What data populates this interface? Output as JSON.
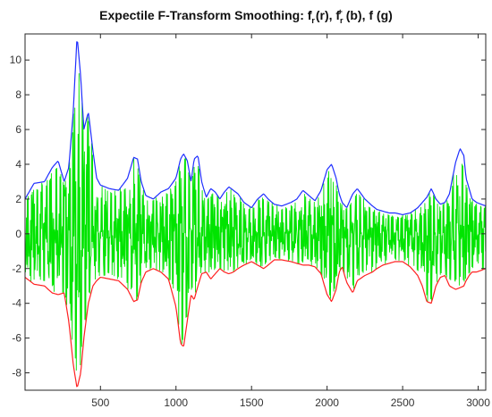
{
  "chart_data": {
    "type": "line",
    "title_parts": {
      "t1": "Expectile F-Transform Smoothing: f",
      "s1": "r",
      "p1": "-",
      "t2": " (r), f",
      "s2": "r",
      "p2": "+",
      "t3": " (b), f (g)"
    },
    "xlabel": "",
    "ylabel": "",
    "xlim": [
      1,
      3050
    ],
    "ylim": [
      -9,
      11.5
    ],
    "xticks": [
      500,
      1000,
      1500,
      2000,
      2500,
      3000
    ],
    "yticks": [
      -8,
      -6,
      -4,
      -2,
      0,
      2,
      4,
      6,
      8,
      10
    ],
    "grid": false,
    "series": [
      {
        "id": "upper",
        "color": "#1f2fff",
        "x": [
          1,
          60,
          130,
          180,
          220,
          260,
          290,
          320,
          345,
          370,
          390,
          420,
          450,
          475,
          500,
          560,
          620,
          680,
          720,
          745,
          770,
          800,
          850,
          900,
          950,
          1000,
          1030,
          1050,
          1075,
          1100,
          1120,
          1145,
          1170,
          1200,
          1230,
          1260,
          1290,
          1320,
          1350,
          1380,
          1410,
          1450,
          1500,
          1540,
          1580,
          1610,
          1650,
          1700,
          1760,
          1800,
          1840,
          1880,
          1920,
          1960,
          2000,
          2030,
          2060,
          2080,
          2100,
          2130,
          2170,
          2200,
          2250,
          2300,
          2330,
          2370,
          2410,
          2450,
          2500,
          2550,
          2600,
          2630,
          2660,
          2690,
          2720,
          2750,
          2780,
          2810,
          2850,
          2880,
          2905,
          2920,
          2940,
          2960,
          2990,
          3050
        ],
        "y": [
          2.0,
          2.9,
          3.0,
          3.8,
          4.2,
          3.0,
          3.8,
          7.0,
          11.4,
          9.0,
          6.0,
          7.0,
          4.8,
          3.2,
          2.8,
          2.6,
          2.5,
          3.2,
          4.4,
          4.3,
          3.0,
          2.2,
          2.0,
          2.4,
          2.6,
          3.2,
          4.3,
          4.6,
          4.2,
          3.0,
          4.3,
          4.5,
          3.0,
          2.1,
          2.6,
          2.4,
          2.0,
          2.4,
          2.7,
          2.5,
          2.3,
          1.8,
          1.5,
          2.0,
          2.3,
          2.0,
          1.7,
          1.6,
          1.8,
          2.0,
          2.5,
          2.2,
          1.9,
          2.5,
          3.7,
          4.0,
          3.2,
          2.3,
          1.8,
          1.5,
          2.3,
          2.6,
          2.0,
          1.6,
          1.4,
          1.3,
          1.2,
          1.2,
          1.1,
          1.2,
          1.5,
          1.8,
          2.1,
          2.6,
          2.0,
          1.7,
          1.8,
          2.3,
          4.1,
          4.9,
          4.5,
          3.2,
          2.6,
          2.0,
          1.8,
          1.6
        ]
      },
      {
        "id": "lower",
        "color": "#ff2020",
        "x": [
          1,
          60,
          130,
          180,
          220,
          260,
          290,
          320,
          345,
          370,
          390,
          420,
          450,
          475,
          500,
          560,
          620,
          680,
          720,
          745,
          770,
          800,
          850,
          900,
          950,
          1000,
          1030,
          1050,
          1075,
          1100,
          1120,
          1145,
          1170,
          1200,
          1230,
          1260,
          1290,
          1320,
          1350,
          1380,
          1410,
          1450,
          1500,
          1540,
          1580,
          1610,
          1650,
          1700,
          1760,
          1800,
          1840,
          1880,
          1920,
          1960,
          2000,
          2030,
          2060,
          2080,
          2100,
          2130,
          2170,
          2200,
          2250,
          2300,
          2330,
          2370,
          2410,
          2450,
          2500,
          2550,
          2600,
          2630,
          2660,
          2690,
          2720,
          2750,
          2780,
          2810,
          2850,
          2880,
          2905,
          2920,
          2940,
          2960,
          2990,
          3050
        ],
        "y": [
          -2.5,
          -2.9,
          -3.0,
          -3.4,
          -3.5,
          -3.4,
          -5.0,
          -7.5,
          -8.9,
          -8.0,
          -6.0,
          -4.0,
          -3.0,
          -2.7,
          -2.5,
          -2.6,
          -2.7,
          -3.2,
          -3.9,
          -3.8,
          -2.8,
          -2.2,
          -2.0,
          -2.2,
          -2.6,
          -4.2,
          -6.3,
          -6.5,
          -5.0,
          -3.5,
          -3.8,
          -3.0,
          -2.3,
          -2.2,
          -2.6,
          -2.3,
          -2.0,
          -2.2,
          -2.3,
          -2.2,
          -2.0,
          -1.8,
          -1.6,
          -1.8,
          -2.0,
          -1.8,
          -1.5,
          -1.5,
          -1.6,
          -1.7,
          -1.8,
          -1.8,
          -1.9,
          -2.3,
          -3.5,
          -3.9,
          -3.2,
          -2.2,
          -1.9,
          -2.8,
          -3.4,
          -2.7,
          -2.4,
          -2.2,
          -2.0,
          -1.8,
          -1.7,
          -1.6,
          -1.6,
          -1.9,
          -2.4,
          -3.0,
          -3.9,
          -4.0,
          -3.0,
          -2.5,
          -2.4,
          -3.0,
          -3.2,
          -3.1,
          -3.0,
          -2.7,
          -2.4,
          -2.2,
          -2.2,
          -2.0
        ]
      },
      {
        "id": "signal",
        "color": "#00e400",
        "x": [],
        "y": []
      }
    ]
  }
}
